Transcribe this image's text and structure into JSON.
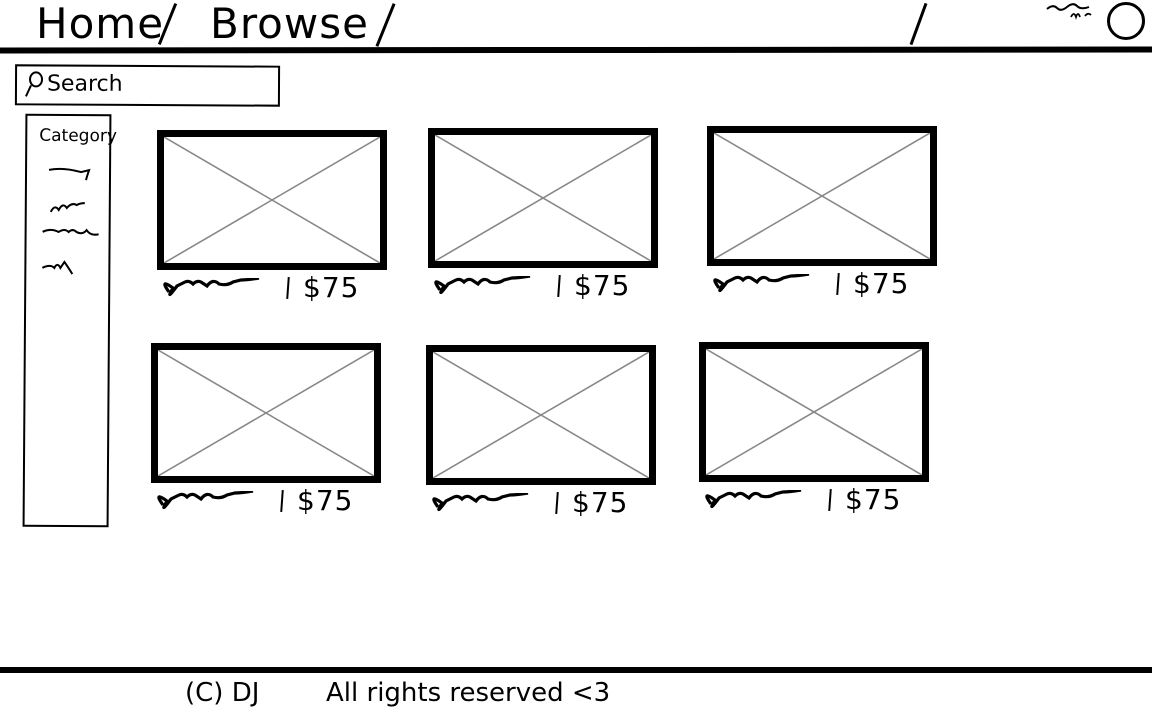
{
  "header": {
    "nav": {
      "home_label": "Home",
      "browse_label": "Browse"
    },
    "profile_icon": "profile-circle-icon"
  },
  "search": {
    "placeholder": "Search",
    "icon": "search-icon"
  },
  "sidebar": {
    "title": "Category",
    "item_count_shown": 4
  },
  "products": [
    {
      "price": "$75"
    },
    {
      "price": "$75"
    },
    {
      "price": "$75"
    },
    {
      "price": "$75"
    },
    {
      "price": "$75"
    },
    {
      "price": "$75"
    }
  ],
  "footer": {
    "copyright": "(C) DJ",
    "rights": "All rights reserved <3"
  },
  "colors": {
    "ink": "#000000",
    "placeholder_cross": "#888888",
    "background": "#ffffff"
  }
}
